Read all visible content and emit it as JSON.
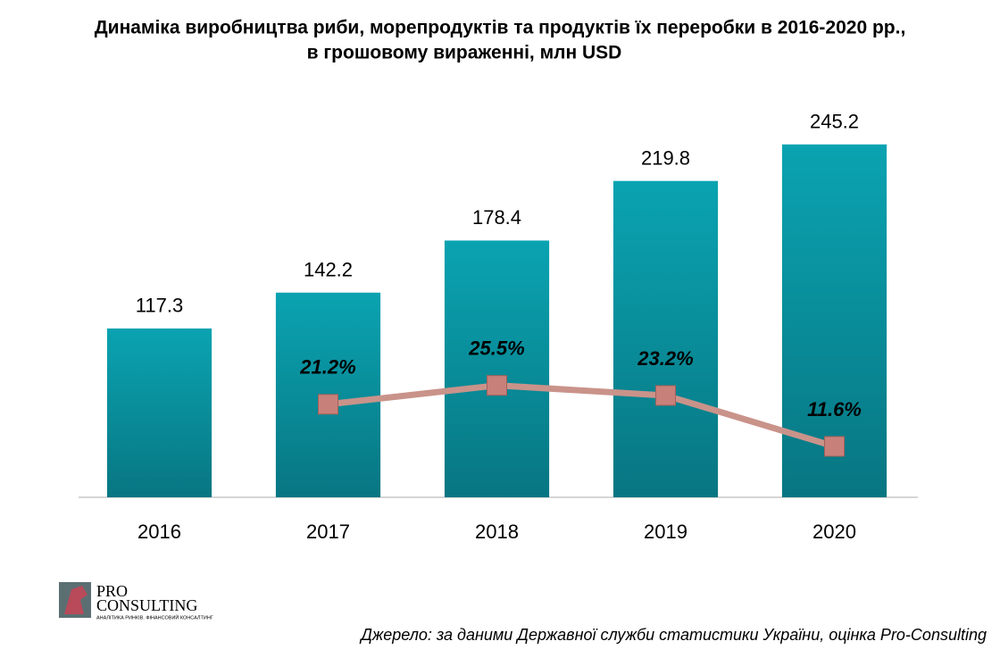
{
  "chart_data": {
    "type": "bar",
    "title": "Динаміка виробництва риби, морепродуктів та продуктів їх переробки в 2016-2020 рр.,",
    "subtitle": "в грошовому вираженні, млн USD",
    "categories": [
      "2016",
      "2017",
      "2018",
      "2019",
      "2020"
    ],
    "series": [
      {
        "type": "bar",
        "color": "#0aa3b1",
        "values": [
          117.3,
          142.2,
          178.4,
          219.8,
          245.2
        ]
      },
      {
        "type": "line",
        "axis": "y2",
        "color": "#c9938a",
        "values": [
          null,
          21.2,
          25.5,
          23.2,
          11.6
        ],
        "value_labels": [
          null,
          "21.2%",
          "25.5%",
          "23.2%",
          "11.6%"
        ]
      }
    ],
    "ylim": [
      0,
      250
    ],
    "y2lim": [
      0,
      82
    ],
    "source": "Джерело: за даними Державної служби статистики України, оцінка Pro-Consulting",
    "logo": {
      "line1": "PRO",
      "line2": "CONSULTING",
      "tagline": "АНАЛІТИКА РИНКІВ. ФІНАНСОВИЙ КОНСАЛТИНГ"
    }
  }
}
